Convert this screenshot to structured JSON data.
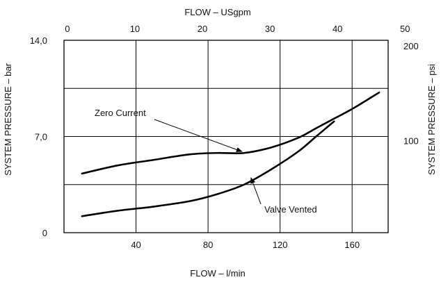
{
  "chart_data": {
    "type": "line",
    "grid": true,
    "x_bottom": {
      "label": "FLOW – l/min",
      "range": [
        0,
        180
      ],
      "ticks": [
        40,
        80,
        120,
        160
      ]
    },
    "x_top": {
      "label": "FLOW – USgpm",
      "range": [
        -0.5,
        47.5
      ],
      "ticks": [
        0,
        10,
        20,
        30,
        40,
        50
      ]
    },
    "y_left": {
      "label": "SYSTEM PRESSURE – bar",
      "range": [
        0,
        14
      ],
      "ticks": [
        0,
        7,
        14
      ],
      "tick_labels": [
        "0",
        "7,0",
        "14,0"
      ]
    },
    "y_right": {
      "label": "SYSTEM PRESSURE – psi",
      "range": [
        0,
        203
      ],
      "ticks": [
        100,
        200
      ],
      "tick_labels": [
        "100",
        "200"
      ]
    },
    "series": [
      {
        "name": "Zero Current",
        "x": [
          10,
          30,
          50,
          70,
          85,
          100,
          115,
          130,
          140,
          150,
          160,
          175
        ],
        "y": [
          4.3,
          4.9,
          5.3,
          5.7,
          5.8,
          5.8,
          6.2,
          6.9,
          7.6,
          8.3,
          9.0,
          10.2
        ]
      },
      {
        "name": "Valve Vented",
        "x": [
          10,
          30,
          50,
          70,
          85,
          100,
          115,
          130,
          140,
          150
        ],
        "y": [
          1.2,
          1.6,
          1.9,
          2.3,
          2.8,
          3.5,
          4.6,
          5.9,
          7.0,
          8.1
        ]
      }
    ],
    "annotations": [
      {
        "series": "Zero Current",
        "text": "Zero Current",
        "point": [
          100,
          5.8
        ]
      },
      {
        "series": "Valve Vented",
        "text": "Valve Vented",
        "point": [
          105,
          3.9
        ]
      }
    ]
  }
}
